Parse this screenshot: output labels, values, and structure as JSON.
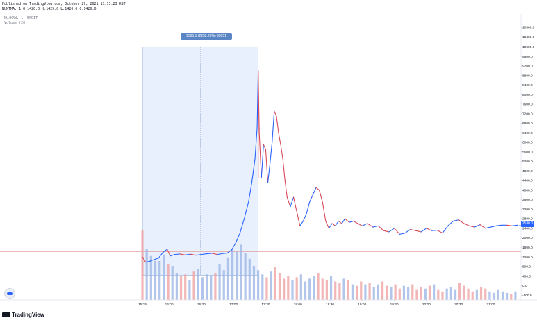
{
  "header": {
    "published": "Published on TradingView.com, October 29, 2021 11:13:23 KST",
    "ohlc": "NUNTMA, 1 O:1420.0 H:1425.0 L:1420.0 C:1420.0"
  },
  "legend": {
    "symbol": "NU/KRW, 1, UPBIT",
    "volume": "Volume (20)"
  },
  "range_label": "9565.1 (2252.29%) 95651",
  "footer": {
    "brand": "TradingView"
  },
  "last_price_label": "2530.0",
  "colors": {
    "up": "#2962ff",
    "down": "#d84a5b",
    "vol_up": "#9fb8e6",
    "vol_down": "#efa4a4",
    "range_fill": "#e3edfb",
    "range_border": "#6d8fc7",
    "hline": "#e3a0a0"
  },
  "chart_data": {
    "type": "line",
    "title": "",
    "xlabel": "",
    "ylabel": "",
    "ylim": [
      -600,
      11200
    ],
    "y_ticks": [
      "-400.0",
      "0.0",
      "400.0",
      "800.0",
      "1200.0",
      "1600.0",
      "2000.0",
      "2400.0",
      "2800.0",
      "3200.0",
      "3600.0",
      "4000.0",
      "4400.0",
      "4800.0",
      "5200.0",
      "5600.0",
      "6000.0",
      "6400.0",
      "6800.0",
      "7200.0",
      "7600.0",
      "8000.0",
      "8400.0",
      "8800.0",
      "9200.0",
      "9600.0",
      "10000.0",
      "10400.0",
      "10800.0"
    ],
    "y_tick_values": [
      -400,
      0,
      400,
      800,
      1200,
      1600,
      2000,
      2400,
      2800,
      3200,
      3600,
      4000,
      4400,
      4800,
      5200,
      5600,
      6000,
      6400,
      6800,
      7200,
      7600,
      8000,
      8400,
      8800,
      9200,
      9600,
      10000,
      10400,
      10800
    ],
    "x_ticks": [
      "15:35",
      "16:00",
      "16:30",
      "17:00",
      "17:30",
      "18:00",
      "18:30",
      "19:00",
      "19:30",
      "20:00",
      "20:30",
      "21:00"
    ],
    "x_tick_minutes": [
      935,
      960,
      990,
      1020,
      1050,
      1080,
      1110,
      1140,
      1170,
      1200,
      1230,
      1260
    ],
    "x_range_minutes": [
      935,
      1285
    ],
    "horizontal_line": 1420,
    "range_measure": {
      "from_minute": 935,
      "to_minute": 1043,
      "from_price": 420,
      "to_price": 10000
    },
    "series": [
      {
        "x": [
          935,
          938,
          942,
          946,
          950,
          954,
          958,
          961,
          965,
          970,
          975,
          980,
          985,
          990,
          995,
          1000,
          1005,
          1010,
          1014,
          1018,
          1022,
          1026,
          1030,
          1034,
          1037,
          1040,
          1042,
          1043,
          1044,
          1046,
          1048,
          1050,
          1052,
          1054,
          1056,
          1058,
          1060,
          1062,
          1064,
          1066,
          1068,
          1070,
          1073,
          1076,
          1079,
          1082,
          1085,
          1088,
          1091,
          1094,
          1097,
          1100,
          1103,
          1106,
          1109,
          1112,
          1115,
          1118,
          1121,
          1124,
          1128,
          1132,
          1136,
          1140,
          1145,
          1150,
          1155,
          1160,
          1165,
          1170,
          1175,
          1180,
          1185,
          1190,
          1195,
          1200,
          1205,
          1210,
          1215,
          1220,
          1225,
          1230,
          1235,
          1240,
          1245,
          1250,
          1255,
          1260,
          1265,
          1270,
          1275,
          1280,
          1285
        ],
        "values": [
          1200,
          980,
          1020,
          1090,
          1150,
          1380,
          1520,
          1240,
          1300,
          1320,
          1280,
          1310,
          1270,
          1300,
          1330,
          1350,
          1300,
          1340,
          1360,
          1480,
          1780,
          2200,
          2800,
          3500,
          4300,
          5300,
          6600,
          9000,
          6400,
          4500,
          5900,
          5700,
          4300,
          5100,
          6000,
          7300,
          7100,
          6400,
          5900,
          5300,
          4400,
          3700,
          3300,
          3700,
          3100,
          2500,
          2700,
          3000,
          3500,
          3800,
          4100,
          4000,
          3500,
          2700,
          2400,
          2600,
          2500,
          2700,
          2600,
          2800,
          2650,
          2700,
          2600,
          2500,
          2600,
          2450,
          2500,
          2300,
          2250,
          2400,
          2150,
          2200,
          2350,
          2300,
          2250,
          2400,
          2300,
          2320,
          2200,
          2500,
          2700,
          2750,
          2600,
          2500,
          2450,
          2550,
          2400,
          2450,
          2500,
          2530,
          2530,
          2500,
          2530
        ]
      },
      {
        "name": "Volume (20)",
        "x": [
          935,
          939,
          943,
          947,
          951,
          955,
          959,
          963,
          967,
          971,
          975,
          979,
          983,
          987,
          991,
          995,
          999,
          1003,
          1007,
          1011,
          1015,
          1019,
          1023,
          1027,
          1031,
          1035,
          1039,
          1043,
          1047,
          1051,
          1055,
          1059,
          1063,
          1067,
          1071,
          1075,
          1079,
          1083,
          1087,
          1091,
          1095,
          1099,
          1103,
          1107,
          1111,
          1115,
          1119,
          1123,
          1127,
          1131,
          1135,
          1139,
          1143,
          1147,
          1151,
          1155,
          1159,
          1163,
          1167,
          1171,
          1175,
          1179,
          1183,
          1187,
          1191,
          1195,
          1199,
          1203,
          1207,
          1211,
          1215,
          1219,
          1223,
          1227,
          1231,
          1235,
          1239,
          1243,
          1247,
          1251,
          1255,
          1259,
          1263,
          1267,
          1271,
          1275,
          1279,
          1283
        ],
        "values": [
          0.98,
          0.72,
          0.62,
          0.55,
          0.55,
          0.64,
          0.5,
          0.48,
          0.38,
          0.34,
          0.36,
          0.28,
          0.4,
          0.44,
          0.32,
          0.36,
          0.34,
          0.38,
          0.5,
          0.42,
          0.6,
          0.72,
          0.68,
          0.78,
          0.66,
          0.58,
          0.48,
          0.42,
          0.36,
          0.32,
          0.4,
          0.46,
          0.38,
          0.3,
          0.34,
          0.28,
          0.32,
          0.36,
          0.26,
          0.3,
          0.34,
          0.38,
          0.3,
          0.28,
          0.34,
          0.26,
          0.24,
          0.3,
          0.28,
          0.22,
          0.2,
          0.26,
          0.22,
          0.24,
          0.18,
          0.22,
          0.26,
          0.2,
          0.18,
          0.22,
          0.16,
          0.2,
          0.18,
          0.22,
          0.14,
          0.18,
          0.16,
          0.2,
          0.22,
          0.14,
          0.12,
          0.16,
          0.18,
          0.14,
          0.24,
          0.2,
          0.16,
          0.12,
          0.14,
          0.18,
          0.16,
          0.12,
          0.1,
          0.14,
          0.12,
          0.1,
          0.08,
          0.12
        ]
      }
    ]
  }
}
